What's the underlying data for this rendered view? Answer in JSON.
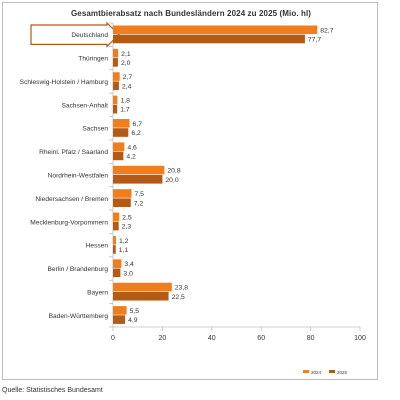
{
  "chart_data": {
    "type": "bar",
    "orientation": "horizontal",
    "title": "Gesamtbierabsatz nach Bundesländern 2024  zu  2025 (Mio. hl)",
    "categories": [
      "Deutschland",
      "Thüringen",
      "Schleswig-Holstein / Hamburg",
      "Sachsen-Anhalt",
      "Sachsen",
      "Rheinl. Pfalz / Saarland",
      "Nordrhein-Westfalen",
      "Niedersachsen / Bremen",
      "Mecklenburg-Vorpommern",
      "Hessen",
      "Berlin / Brandenburg",
      "Bayern",
      "Baden-Württemberg"
    ],
    "series": [
      {
        "name": "2024",
        "color": "#F07D1E",
        "values": [
          82.7,
          2.1,
          2.7,
          1.8,
          6.7,
          4.6,
          20.8,
          7.5,
          2.5,
          1.2,
          3.4,
          23.8,
          5.5
        ],
        "labels": [
          "82,7",
          "2,1",
          "2,7",
          "1,8",
          "6,7",
          "4,6",
          "20,8",
          "7,5",
          "2,5",
          "1,2",
          "3,4",
          "23,8",
          "5,5"
        ]
      },
      {
        "name": "2025",
        "color": "#B35A14",
        "values": [
          77.7,
          2.0,
          2.4,
          1.7,
          6.2,
          4.2,
          20.0,
          7.2,
          2.3,
          1.1,
          3.0,
          22.5,
          4.9
        ],
        "labels": [
          "77,7",
          "2,0",
          "2,4",
          "1,7",
          "6,2",
          "4,2",
          "20,0",
          "7,2",
          "2,3",
          "1,1",
          "3,0",
          "22,5",
          "4,9"
        ]
      }
    ],
    "xlim": [
      0,
      100
    ],
    "xticks": [
      0,
      20,
      40,
      60,
      80,
      100
    ],
    "grid": false,
    "legend_position": "bottom-right",
    "highlighted_category": "Deutschland"
  },
  "source": "Quelle: Statistisches Bundesamt"
}
